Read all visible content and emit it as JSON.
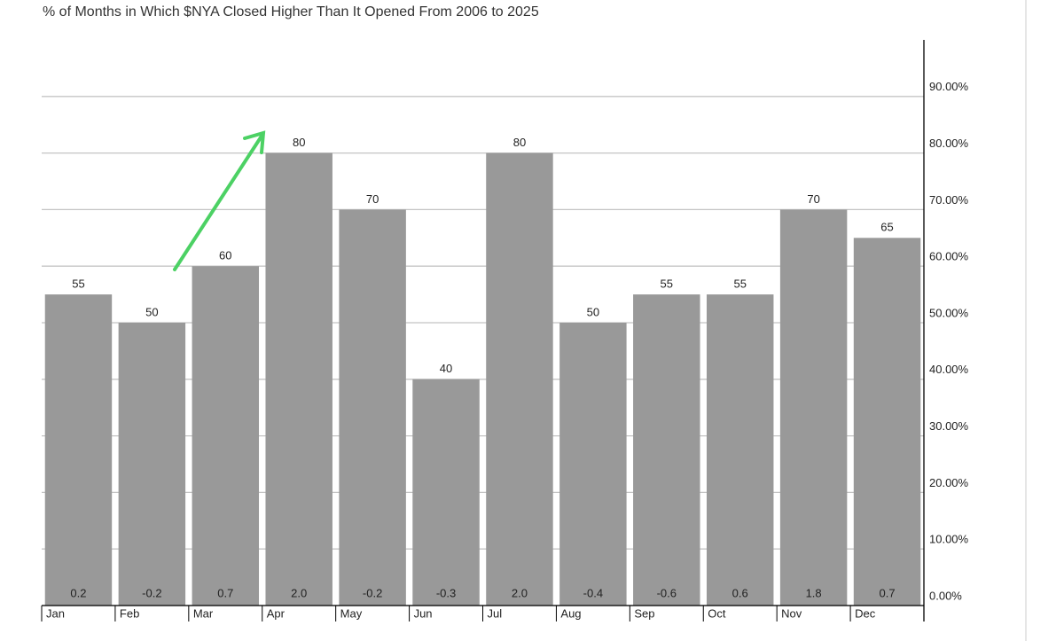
{
  "chart_data": {
    "type": "bar",
    "title": "% of Months in Which $NYA Closed Higher Than It Opened From 2006 to 2025",
    "categories": [
      "Jan",
      "Feb",
      "Mar",
      "Apr",
      "May",
      "Jun",
      "Jul",
      "Aug",
      "Sep",
      "Oct",
      "Nov",
      "Dec"
    ],
    "values": [
      55,
      50,
      60,
      80,
      70,
      40,
      80,
      50,
      55,
      55,
      70,
      65
    ],
    "bar_notes": [
      "0.2",
      "-0.2",
      "0.7",
      "2.0",
      "-0.2",
      "-0.3",
      "2.0",
      "-0.4",
      "-0.6",
      "0.6",
      "1.8",
      "0.7"
    ],
    "color": "#999999",
    "ylim": [
      0,
      100
    ],
    "yticks": [
      {
        "value": 0,
        "label": "0.00%"
      },
      {
        "value": 10,
        "label": "10.00%"
      },
      {
        "value": 20,
        "label": "20.00%"
      },
      {
        "value": 30,
        "label": "30.00%"
      },
      {
        "value": 40,
        "label": "40.00%"
      },
      {
        "value": 50,
        "label": "50.00%"
      },
      {
        "value": 60,
        "label": "60.00%"
      },
      {
        "value": 70,
        "label": "70.00%"
      },
      {
        "value": 80,
        "label": "80.00%"
      },
      {
        "value": 90,
        "label": "90.00%"
      }
    ],
    "grid": true,
    "y_axis_side": "right"
  }
}
